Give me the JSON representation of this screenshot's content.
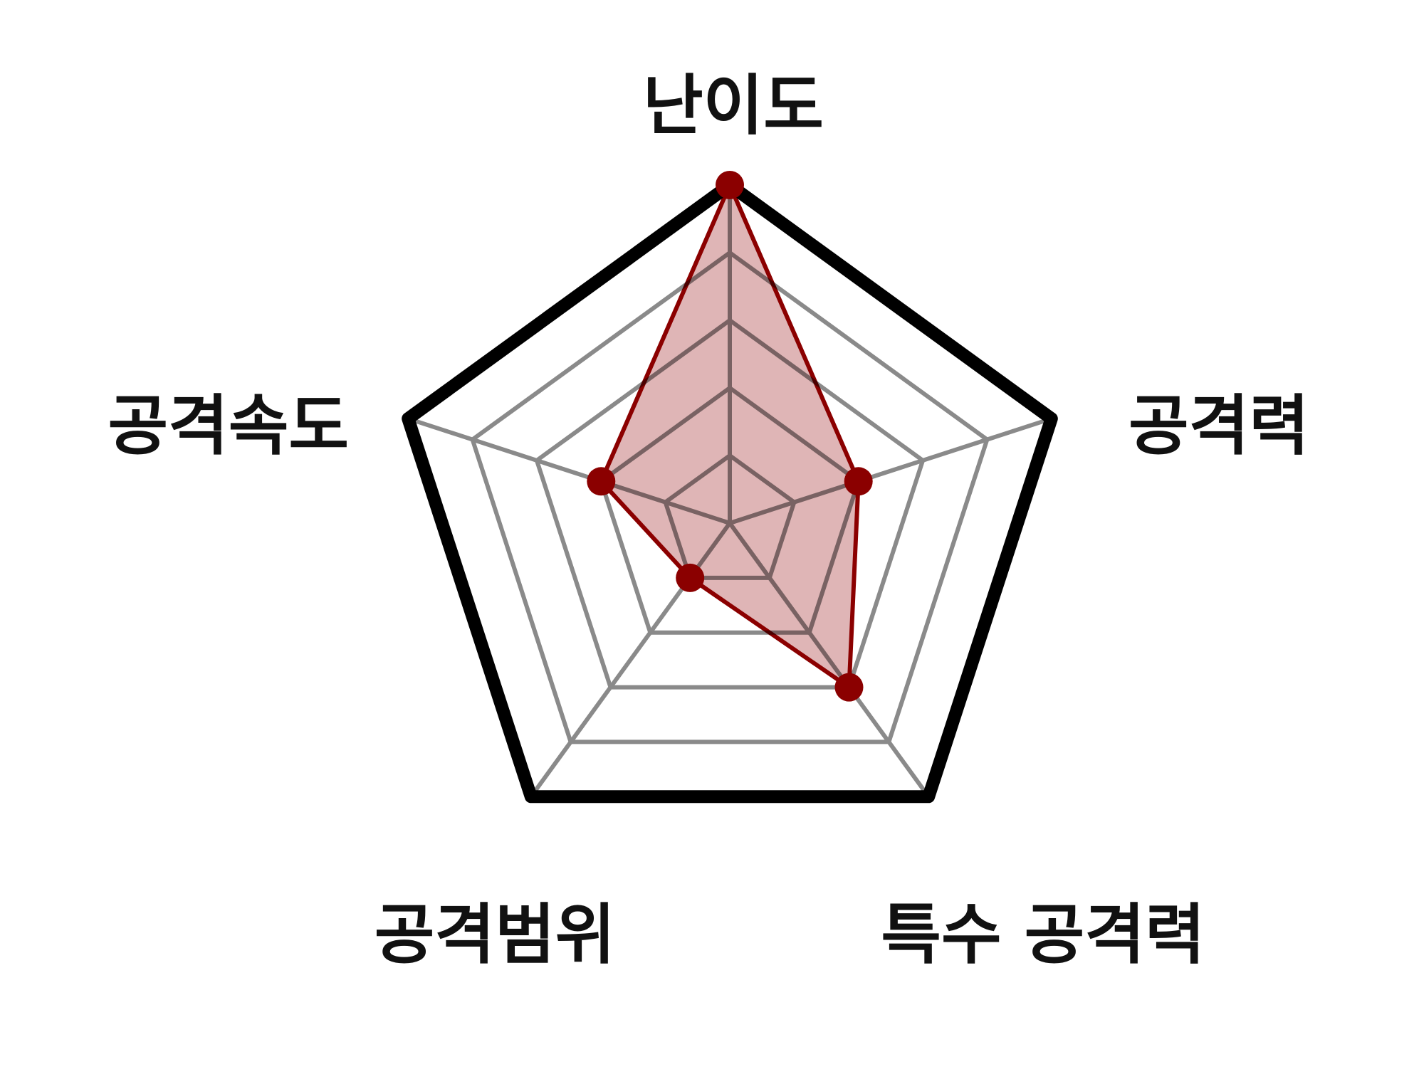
{
  "chart_data": {
    "type": "radar",
    "axes": [
      "난이도",
      "공격력",
      "특수 공격력",
      "공격범위",
      "공격속도"
    ],
    "values": [
      5,
      2,
      3,
      1,
      2
    ],
    "range": [
      0,
      5
    ],
    "grid_levels": 5,
    "grid": true,
    "legend": "none",
    "colors": {
      "fill": "#d9a8a9",
      "line": "#8b0000",
      "marker": "#8b0000",
      "grid": "#8a8a8a",
      "outer": "#000000",
      "label": "#111111"
    }
  }
}
